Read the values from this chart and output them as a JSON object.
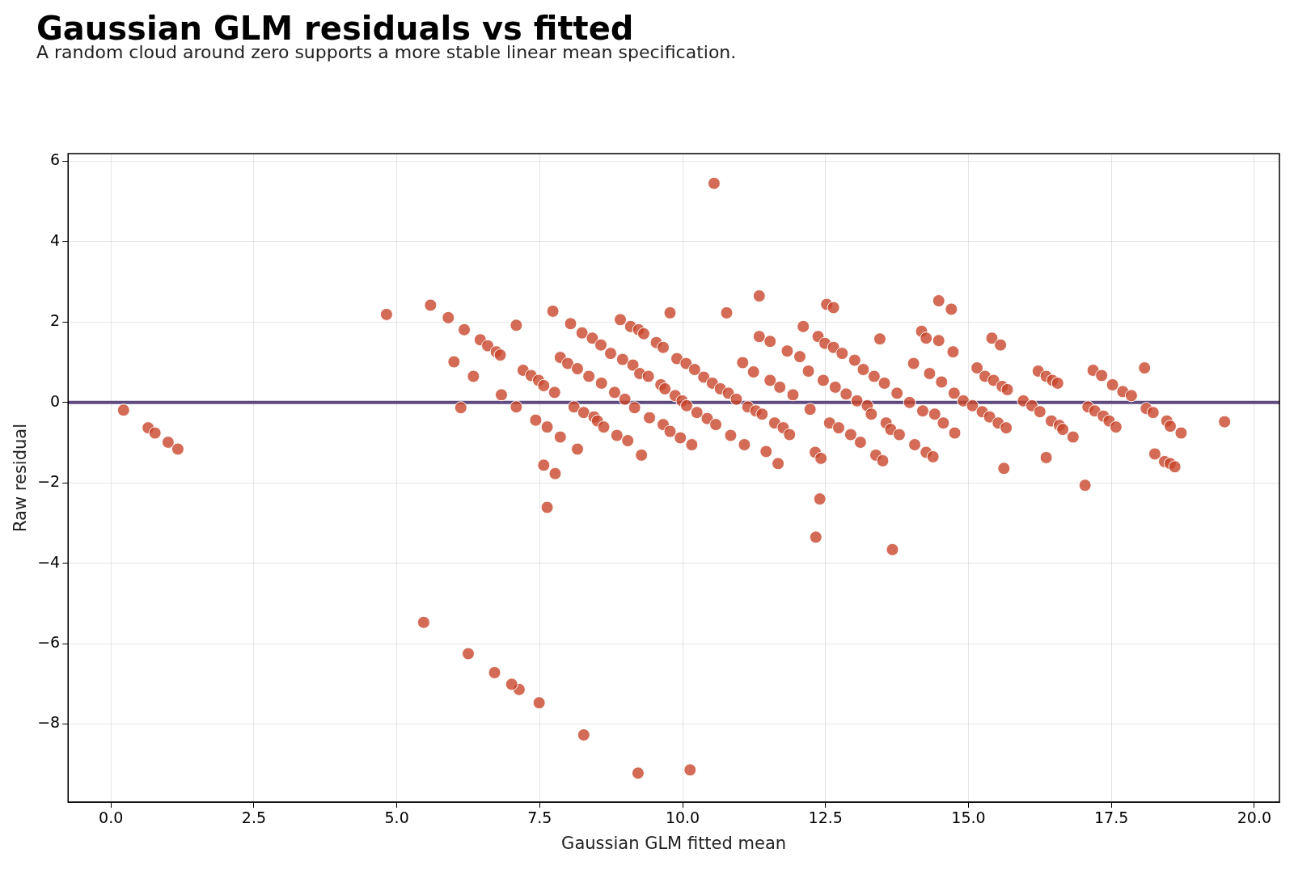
{
  "chart_data": {
    "type": "scatter",
    "title": "Gaussian GLM residuals vs fitted",
    "subtitle": "A random cloud around zero supports a more stable linear mean specification.",
    "xlabel": "Gaussian GLM fitted mean",
    "ylabel": "Raw residual",
    "xlim": [
      -0.75,
      20.44
    ],
    "ylim": [
      -9.94,
      6.19
    ],
    "xticks": [
      {
        "value": 0,
        "label": "0.0"
      },
      {
        "value": 2.5,
        "label": "2.5"
      },
      {
        "value": 5,
        "label": "5.0"
      },
      {
        "value": 7.5,
        "label": "7.5"
      },
      {
        "value": 10,
        "label": "10.0"
      },
      {
        "value": 12.5,
        "label": "12.5"
      },
      {
        "value": 15,
        "label": "15.0"
      },
      {
        "value": 17.5,
        "label": "17.5"
      },
      {
        "value": 20,
        "label": "20.0"
      }
    ],
    "yticks": [
      {
        "value": -8,
        "label": "−8"
      },
      {
        "value": -6,
        "label": "−6"
      },
      {
        "value": -4,
        "label": "−4"
      },
      {
        "value": -2,
        "label": "−2"
      },
      0,
      2,
      4,
      6
    ],
    "grid": true,
    "marker": "circle",
    "legend": false,
    "ref_lines": [
      {
        "axis": "y",
        "value": 0,
        "color": "#5e4a7e"
      }
    ],
    "series": [
      {
        "color": "#c8462c",
        "x": [
          0.22,
          0.65,
          0.77,
          1.0,
          1.17,
          4.82,
          5.59,
          5.9,
          6.0,
          6.18,
          6.34,
          6.12,
          6.46,
          6.59,
          6.74,
          6.81,
          7.09,
          6.83,
          7.09,
          7.21,
          7.35,
          7.48,
          7.57,
          7.43,
          7.63,
          7.57,
          7.63,
          7.73,
          7.76,
          7.77,
          7.86,
          7.86,
          7.99,
          8.04,
          8.1,
          8.16,
          8.16,
          8.24,
          8.27,
          8.36,
          8.42,
          8.45,
          8.51,
          8.57,
          8.58,
          8.62,
          8.74,
          8.81,
          8.85,
          8.91,
          8.95,
          8.99,
          9.04,
          9.09,
          9.13,
          9.16,
          9.23,
          9.25,
          9.28,
          9.32,
          9.4,
          9.42,
          9.54,
          9.62,
          9.66,
          9.66,
          9.69,
          9.78,
          9.78,
          9.87,
          9.9,
          9.96,
          9.99,
          10.06,
          10.07,
          10.16,
          10.21,
          10.25,
          10.13,
          9.22,
          8.27,
          7.49,
          7.14,
          7.01,
          6.71,
          6.25,
          5.47,
          10.55,
          10.37,
          10.43,
          10.52,
          10.58,
          10.66,
          10.77,
          10.8,
          10.84,
          10.94,
          11.05,
          11.08,
          11.14,
          11.24,
          11.28,
          11.34,
          11.34,
          11.39,
          11.46,
          11.53,
          11.53,
          11.61,
          11.67,
          11.7,
          11.76,
          11.83,
          11.87,
          11.93,
          12.11,
          12.05,
          12.2,
          12.23,
          12.32,
          12.33,
          12.37,
          12.4,
          12.42,
          12.46,
          12.49,
          12.52,
          12.57,
          12.64,
          12.64,
          12.67,
          12.73,
          12.79,
          12.86,
          12.94,
          13.01,
          13.05,
          13.11,
          13.16,
          13.23,
          13.3,
          13.35,
          13.38,
          13.45,
          13.5,
          13.53,
          13.56,
          13.64,
          13.67,
          13.75,
          13.79,
          13.97,
          14.04,
          14.06,
          14.18,
          14.2,
          14.26,
          14.26,
          14.32,
          14.38,
          14.41,
          14.48,
          14.48,
          14.53,
          14.56,
          14.7,
          14.73,
          14.75,
          14.76,
          14.91,
          15.07,
          15.15,
          15.24,
          15.29,
          15.37,
          15.41,
          15.44,
          15.52,
          15.56,
          15.59,
          15.62,
          15.66,
          15.68,
          15.96,
          16.11,
          16.22,
          16.25,
          16.36,
          16.36,
          16.45,
          16.47,
          16.56,
          16.59,
          16.65,
          16.83,
          17.04,
          17.09,
          17.18,
          17.21,
          17.33,
          17.36,
          17.46,
          17.52,
          17.58,
          17.7,
          17.85,
          18.08,
          18.11,
          18.23,
          18.26,
          18.43,
          18.47,
          18.53,
          18.53,
          18.61,
          18.72,
          19.48
        ],
        "values": [
          -0.19,
          -0.63,
          -0.76,
          -0.99,
          -1.16,
          2.19,
          2.42,
          2.11,
          1.01,
          1.81,
          0.65,
          -0.13,
          1.56,
          1.41,
          1.26,
          1.18,
          1.92,
          0.19,
          -0.11,
          0.8,
          0.67,
          0.55,
          0.42,
          -0.44,
          -0.61,
          -1.56,
          -2.61,
          2.27,
          0.25,
          -1.77,
          -0.86,
          1.12,
          0.97,
          1.96,
          -0.11,
          0.84,
          -1.16,
          1.73,
          -0.25,
          0.65,
          1.6,
          -0.36,
          -0.46,
          1.43,
          0.48,
          -0.61,
          1.22,
          0.25,
          -0.82,
          2.06,
          1.07,
          0.08,
          -0.95,
          1.89,
          0.93,
          -0.13,
          1.81,
          0.72,
          -1.31,
          1.71,
          0.65,
          -0.38,
          1.49,
          0.44,
          -0.55,
          1.37,
          0.34,
          -0.72,
          2.23,
          0.17,
          1.09,
          -0.88,
          0.04,
          0.97,
          -0.08,
          -1.05,
          0.82,
          -0.25,
          -9.14,
          -9.22,
          -8.27,
          -7.47,
          -7.14,
          -7.01,
          -6.72,
          -6.25,
          -5.47,
          5.45,
          0.63,
          -0.4,
          0.48,
          -0.55,
          0.34,
          2.23,
          0.23,
          -0.82,
          0.08,
          0.99,
          -1.05,
          -0.11,
          0.76,
          -0.21,
          2.65,
          1.64,
          -0.29,
          -1.22,
          1.52,
          0.55,
          -0.51,
          -1.52,
          0.38,
          -0.63,
          1.28,
          -0.8,
          0.19,
          1.89,
          1.14,
          0.78,
          -0.17,
          -1.24,
          -3.35,
          1.64,
          -2.4,
          -1.39,
          0.55,
          1.47,
          2.44,
          -0.51,
          2.36,
          1.37,
          0.38,
          -0.63,
          1.22,
          0.21,
          -0.8,
          1.05,
          0.04,
          -0.99,
          0.82,
          -0.08,
          -0.29,
          0.65,
          -1.31,
          1.58,
          -1.45,
          0.48,
          -0.51,
          -0.67,
          -3.66,
          0.23,
          -0.8,
          0,
          0.97,
          -1.05,
          1.77,
          -0.21,
          1.6,
          -1.24,
          0.72,
          -1.35,
          -0.29,
          2.53,
          1.54,
          0.51,
          -0.51,
          2.32,
          1.26,
          0.23,
          -0.76,
          0.04,
          -0.08,
          0.86,
          -0.23,
          0.65,
          -0.36,
          1.6,
          0.55,
          -0.51,
          1.43,
          0.4,
          -1.64,
          -0.63,
          0.32,
          0.04,
          -0.08,
          0.78,
          -0.23,
          0.65,
          -1.37,
          -0.46,
          0.55,
          0.48,
          -0.57,
          -0.67,
          -0.86,
          -2.06,
          -0.11,
          0.8,
          -0.21,
          0.67,
          -0.34,
          -0.46,
          0.44,
          -0.61,
          0.27,
          0.17,
          0.86,
          -0.15,
          -0.25,
          -1.28,
          -1.47,
          -0.46,
          -0.59,
          -1.52,
          -1.6,
          -0.76,
          -0.48
        ]
      }
    ]
  }
}
